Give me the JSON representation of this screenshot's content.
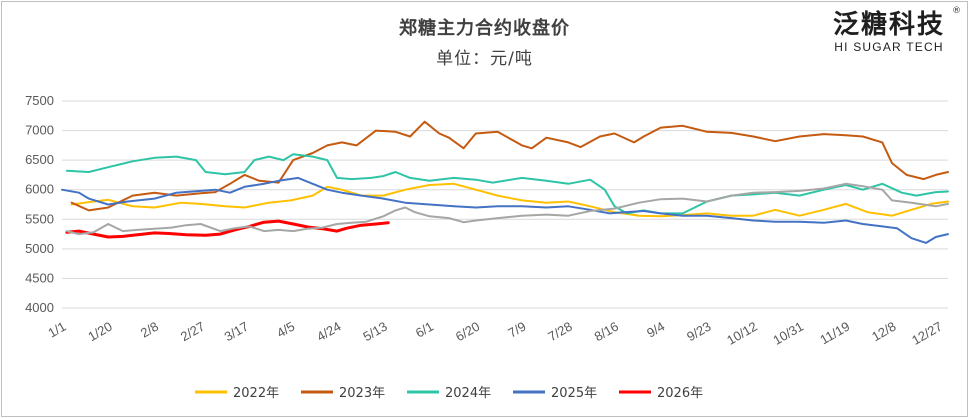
{
  "chart_data": {
    "type": "line",
    "title": "郑糖主力合约收盘价",
    "subtitle": "单位：元/吨",
    "logo": {
      "cn": "泛糖科技",
      "en": "HI SUGAR TECH",
      "reg": "®"
    },
    "ylim": [
      4000,
      7500
    ],
    "yticks": [
      4000,
      4500,
      5000,
      5500,
      6000,
      6500,
      7000,
      7500
    ],
    "xlim": [
      1,
      365
    ],
    "xticks": [
      {
        "label": "1/1",
        "day": 1
      },
      {
        "label": "1/20",
        "day": 20
      },
      {
        "label": "2/8",
        "day": 39
      },
      {
        "label": "2/27",
        "day": 58
      },
      {
        "label": "3/17",
        "day": 76
      },
      {
        "label": "4/5",
        "day": 95
      },
      {
        "label": "4/24",
        "day": 114
      },
      {
        "label": "5/13",
        "day": 133
      },
      {
        "label": "6/1",
        "day": 152
      },
      {
        "label": "6/20",
        "day": 171
      },
      {
        "label": "7/9",
        "day": 190
      },
      {
        "label": "7/28",
        "day": 209
      },
      {
        "label": "8/16",
        "day": 228
      },
      {
        "label": "9/4",
        "day": 247
      },
      {
        "label": "9/23",
        "day": 266
      },
      {
        "label": "10/12",
        "day": 285
      },
      {
        "label": "10/31",
        "day": 304
      },
      {
        "label": "11/19",
        "day": 323
      },
      {
        "label": "12/8",
        "day": 342
      },
      {
        "label": "12/27",
        "day": 361
      }
    ],
    "grid": true,
    "legend_position": "bottom",
    "series": [
      {
        "name": "2022年",
        "color": "#FFC000",
        "width": 2,
        "points": [
          [
            5,
            5750
          ],
          [
            12,
            5790
          ],
          [
            20,
            5830
          ],
          [
            30,
            5720
          ],
          [
            39,
            5700
          ],
          [
            50,
            5780
          ],
          [
            58,
            5760
          ],
          [
            68,
            5720
          ],
          [
            76,
            5700
          ],
          [
            86,
            5780
          ],
          [
            95,
            5820
          ],
          [
            104,
            5900
          ],
          [
            110,
            6050
          ],
          [
            116,
            6000
          ],
          [
            124,
            5900
          ],
          [
            133,
            5900
          ],
          [
            142,
            6000
          ],
          [
            152,
            6080
          ],
          [
            162,
            6100
          ],
          [
            171,
            6000
          ],
          [
            180,
            5900
          ],
          [
            190,
            5820
          ],
          [
            200,
            5780
          ],
          [
            209,
            5800
          ],
          [
            218,
            5720
          ],
          [
            228,
            5620
          ],
          [
            238,
            5560
          ],
          [
            247,
            5550
          ],
          [
            256,
            5570
          ],
          [
            266,
            5600
          ],
          [
            276,
            5560
          ],
          [
            285,
            5560
          ],
          [
            294,
            5660
          ],
          [
            304,
            5560
          ],
          [
            314,
            5660
          ],
          [
            323,
            5760
          ],
          [
            332,
            5620
          ],
          [
            342,
            5560
          ],
          [
            350,
            5660
          ],
          [
            358,
            5760
          ],
          [
            365,
            5800
          ]
        ]
      },
      {
        "name": "2023年",
        "color": "#C55A11",
        "width": 2,
        "points": [
          [
            5,
            5780
          ],
          [
            12,
            5650
          ],
          [
            20,
            5700
          ],
          [
            30,
            5900
          ],
          [
            39,
            5950
          ],
          [
            48,
            5900
          ],
          [
            58,
            5940
          ],
          [
            64,
            5960
          ],
          [
            70,
            6100
          ],
          [
            76,
            6250
          ],
          [
            82,
            6150
          ],
          [
            90,
            6120
          ],
          [
            96,
            6500
          ],
          [
            104,
            6620
          ],
          [
            110,
            6750
          ],
          [
            116,
            6800
          ],
          [
            122,
            6750
          ],
          [
            130,
            7000
          ],
          [
            138,
            6980
          ],
          [
            144,
            6900
          ],
          [
            150,
            7150
          ],
          [
            156,
            6950
          ],
          [
            160,
            6880
          ],
          [
            166,
            6700
          ],
          [
            171,
            6950
          ],
          [
            180,
            6980
          ],
          [
            190,
            6750
          ],
          [
            194,
            6700
          ],
          [
            200,
            6880
          ],
          [
            209,
            6800
          ],
          [
            214,
            6720
          ],
          [
            222,
            6900
          ],
          [
            228,
            6950
          ],
          [
            236,
            6800
          ],
          [
            240,
            6900
          ],
          [
            247,
            7050
          ],
          [
            256,
            7080
          ],
          [
            266,
            6980
          ],
          [
            276,
            6960
          ],
          [
            285,
            6900
          ],
          [
            294,
            6820
          ],
          [
            304,
            6900
          ],
          [
            314,
            6940
          ],
          [
            323,
            6920
          ],
          [
            330,
            6900
          ],
          [
            338,
            6800
          ],
          [
            342,
            6450
          ],
          [
            348,
            6250
          ],
          [
            355,
            6180
          ],
          [
            360,
            6250
          ],
          [
            365,
            6300
          ]
        ]
      },
      {
        "name": "2024年",
        "color": "#2EC4A6",
        "width": 2,
        "points": [
          [
            3,
            6320
          ],
          [
            12,
            6300
          ],
          [
            20,
            6380
          ],
          [
            30,
            6480
          ],
          [
            39,
            6540
          ],
          [
            48,
            6560
          ],
          [
            56,
            6500
          ],
          [
            60,
            6300
          ],
          [
            68,
            6260
          ],
          [
            76,
            6300
          ],
          [
            80,
            6500
          ],
          [
            86,
            6560
          ],
          [
            92,
            6500
          ],
          [
            96,
            6600
          ],
          [
            104,
            6560
          ],
          [
            110,
            6500
          ],
          [
            114,
            6200
          ],
          [
            120,
            6180
          ],
          [
            128,
            6200
          ],
          [
            133,
            6230
          ],
          [
            138,
            6300
          ],
          [
            144,
            6200
          ],
          [
            152,
            6150
          ],
          [
            162,
            6200
          ],
          [
            171,
            6170
          ],
          [
            178,
            6120
          ],
          [
            190,
            6200
          ],
          [
            200,
            6150
          ],
          [
            209,
            6100
          ],
          [
            218,
            6170
          ],
          [
            224,
            6000
          ],
          [
            228,
            5720
          ],
          [
            233,
            5600
          ],
          [
            240,
            5650
          ],
          [
            247,
            5600
          ],
          [
            256,
            5600
          ],
          [
            266,
            5800
          ],
          [
            276,
            5900
          ],
          [
            285,
            5920
          ],
          [
            294,
            5950
          ],
          [
            304,
            5900
          ],
          [
            314,
            6000
          ],
          [
            323,
            6080
          ],
          [
            330,
            6000
          ],
          [
            338,
            6100
          ],
          [
            346,
            5950
          ],
          [
            352,
            5900
          ],
          [
            360,
            5960
          ],
          [
            365,
            5970
          ]
        ]
      },
      {
        "name": "2025年",
        "color": "#4472C4",
        "width": 2,
        "points": [
          [
            1,
            6000
          ],
          [
            8,
            5950
          ],
          [
            12,
            5850
          ],
          [
            20,
            5750
          ],
          [
            28,
            5800
          ],
          [
            39,
            5850
          ],
          [
            48,
            5950
          ],
          [
            58,
            5980
          ],
          [
            64,
            6000
          ],
          [
            70,
            5950
          ],
          [
            76,
            6050
          ],
          [
            84,
            6100
          ],
          [
            90,
            6150
          ],
          [
            98,
            6200
          ],
          [
            104,
            6100
          ],
          [
            110,
            6000
          ],
          [
            116,
            5950
          ],
          [
            124,
            5900
          ],
          [
            133,
            5850
          ],
          [
            142,
            5780
          ],
          [
            152,
            5750
          ],
          [
            162,
            5720
          ],
          [
            171,
            5700
          ],
          [
            180,
            5720
          ],
          [
            190,
            5720
          ],
          [
            200,
            5700
          ],
          [
            209,
            5720
          ],
          [
            218,
            5660
          ],
          [
            226,
            5600
          ],
          [
            232,
            5620
          ],
          [
            240,
            5640
          ],
          [
            247,
            5600
          ],
          [
            256,
            5560
          ],
          [
            266,
            5560
          ],
          [
            276,
            5520
          ],
          [
            285,
            5480
          ],
          [
            294,
            5460
          ],
          [
            304,
            5460
          ],
          [
            314,
            5440
          ],
          [
            323,
            5480
          ],
          [
            330,
            5420
          ],
          [
            338,
            5380
          ],
          [
            344,
            5350
          ],
          [
            350,
            5180
          ],
          [
            356,
            5100
          ],
          [
            360,
            5200
          ],
          [
            365,
            5250
          ]
        ]
      },
      {
        "name": "2026年",
        "color": "#FF0000",
        "width": 3,
        "points": [
          [
            3,
            5280
          ],
          [
            8,
            5300
          ],
          [
            14,
            5250
          ],
          [
            20,
            5200
          ],
          [
            26,
            5210
          ],
          [
            32,
            5240
          ],
          [
            39,
            5270
          ],
          [
            45,
            5260
          ],
          [
            52,
            5240
          ],
          [
            60,
            5230
          ],
          [
            66,
            5250
          ],
          [
            72,
            5320
          ],
          [
            78,
            5380
          ],
          [
            84,
            5450
          ],
          [
            90,
            5470
          ],
          [
            96,
            5420
          ],
          [
            102,
            5370
          ],
          [
            108,
            5340
          ],
          [
            114,
            5300
          ],
          [
            118,
            5350
          ],
          [
            124,
            5400
          ],
          [
            130,
            5420
          ],
          [
            135,
            5440
          ]
        ]
      },
      {
        "name": "",
        "color": "#A6A6A6",
        "width": 2,
        "points": [
          [
            3,
            5300
          ],
          [
            8,
            5250
          ],
          [
            14,
            5280
          ],
          [
            20,
            5420
          ],
          [
            26,
            5300
          ],
          [
            32,
            5320
          ],
          [
            39,
            5340
          ],
          [
            46,
            5360
          ],
          [
            52,
            5400
          ],
          [
            58,
            5420
          ],
          [
            66,
            5300
          ],
          [
            72,
            5350
          ],
          [
            78,
            5380
          ],
          [
            84,
            5300
          ],
          [
            90,
            5320
          ],
          [
            96,
            5300
          ],
          [
            102,
            5340
          ],
          [
            108,
            5360
          ],
          [
            114,
            5420
          ],
          [
            120,
            5440
          ],
          [
            126,
            5460
          ],
          [
            133,
            5550
          ],
          [
            138,
            5650
          ],
          [
            142,
            5700
          ],
          [
            146,
            5620
          ],
          [
            152,
            5550
          ],
          [
            160,
            5520
          ],
          [
            166,
            5450
          ],
          [
            171,
            5480
          ],
          [
            180,
            5520
          ],
          [
            190,
            5560
          ],
          [
            200,
            5580
          ],
          [
            209,
            5560
          ],
          [
            218,
            5640
          ],
          [
            228,
            5680
          ],
          [
            238,
            5780
          ],
          [
            247,
            5840
          ],
          [
            256,
            5850
          ],
          [
            266,
            5800
          ],
          [
            276,
            5900
          ],
          [
            285,
            5950
          ],
          [
            294,
            5960
          ],
          [
            304,
            5980
          ],
          [
            314,
            6020
          ],
          [
            323,
            6100
          ],
          [
            330,
            6060
          ],
          [
            338,
            6000
          ],
          [
            342,
            5820
          ],
          [
            350,
            5780
          ],
          [
            360,
            5720
          ],
          [
            365,
            5760
          ]
        ]
      }
    ],
    "legend_items": [
      "2022年",
      "2023年",
      "2024年",
      "2025年",
      "2026年"
    ]
  }
}
